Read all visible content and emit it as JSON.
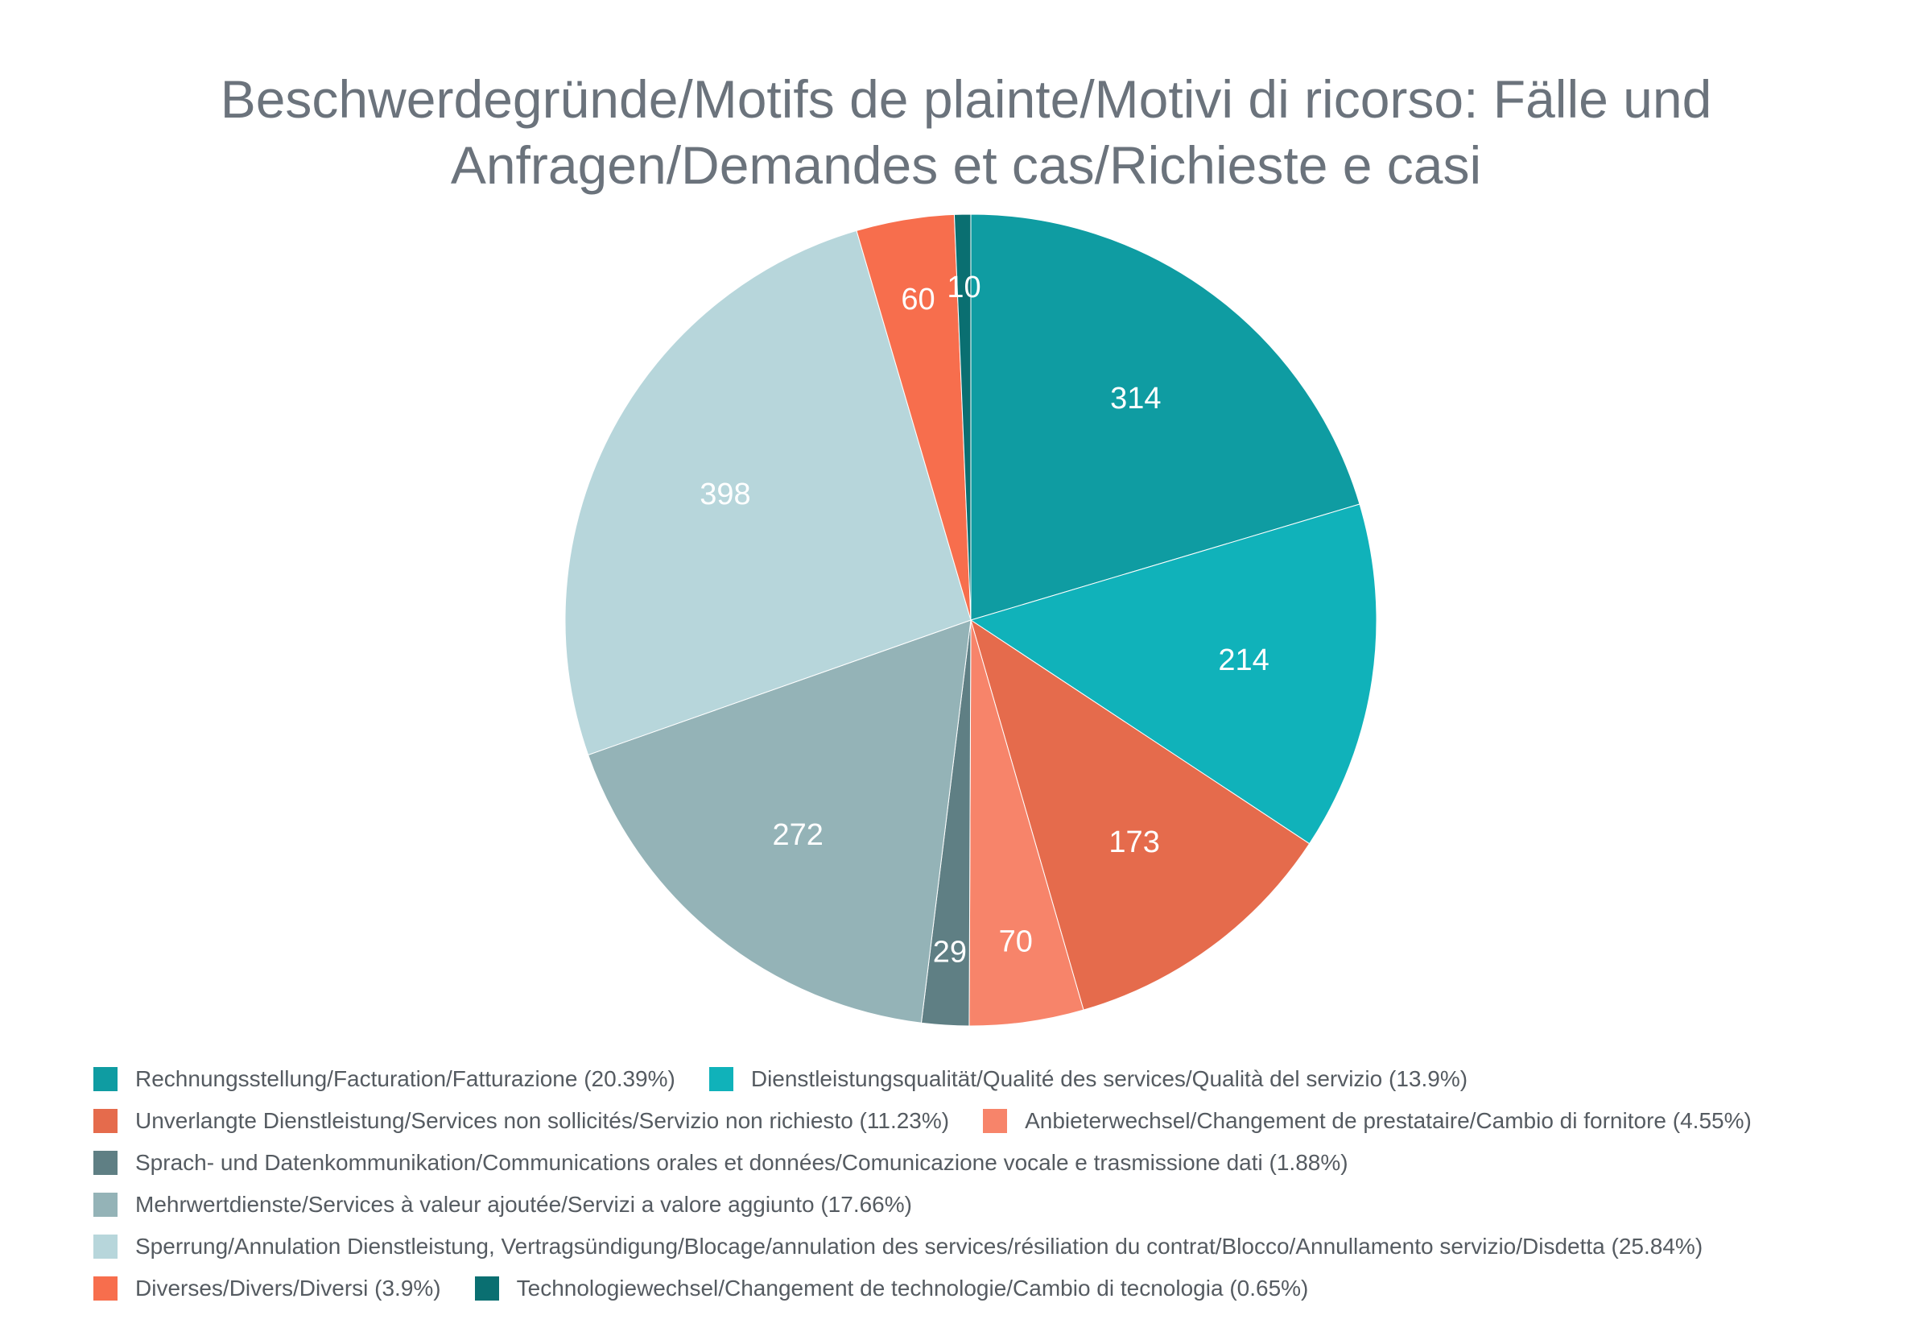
{
  "chart_data": {
    "type": "pie",
    "title_lines": [
      "Beschwerdegründe/Motifs de plainte/Motivi di ricorso: Fälle und",
      "Anfragen/Demandes et cas/Richieste e casi"
    ],
    "slices": [
      {
        "name": "Rechnungsstellung/Facturation/Fatturazione",
        "value": 314,
        "value_label": "314",
        "percent_label": "(20.39%)",
        "color": "#0f9ca2"
      },
      {
        "name": "Dienstleistungsqualität/Qualité des services/Qualità del servizio",
        "value": 214,
        "value_label": "214",
        "percent_label": "(13.9%)",
        "color": "#10b2ba"
      },
      {
        "name": "Unverlangte Dienstleistung/Services non sollicités/Servizio non richiesto",
        "value": 173,
        "value_label": "173",
        "percent_label": "(11.23%)",
        "color": "#e56b4c"
      },
      {
        "name": "Anbieterwechsel/Changement de prestataire/Cambio di fornitore",
        "value": 70,
        "value_label": "70",
        "percent_label": "(4.55%)",
        "color": "#f7846a"
      },
      {
        "name": "Sprach- und Datenkommunikation/Communications orales et données/Comunicazione vocale e trasmissione dati",
        "value": 29,
        "value_label": "29",
        "percent_label": "(1.88%)",
        "color": "#5f7f84"
      },
      {
        "name": "Mehrwertdienste/Services à valeur ajoutée/Servizi a valore aggiunto",
        "value": 272,
        "value_label": "272",
        "percent_label": "(17.66%)",
        "color": "#94b3b7"
      },
      {
        "name": "Sperrung/Annulation Dienstleistung, Vertragsündigung/Blocage/annulation des services/résiliation du contrat/Blocco/Annullamento servizio/Disdetta",
        "value": 398,
        "value_label": "398",
        "percent_label": "(25.84%)",
        "color": "#b7d6db"
      },
      {
        "name": "Diverses/Divers/Diversi",
        "value": 60,
        "value_label": "60",
        "percent_label": "(3.9%)",
        "color": "#f76e4d"
      },
      {
        "name": "Technologiewechsel/Changement de technologie/Cambio di tecnologia",
        "value": 10,
        "value_label": "10",
        "percent_label": "(0.65%)",
        "color": "#0a6f71"
      }
    ],
    "legend_rows": [
      [
        0,
        1
      ],
      [
        2,
        3
      ],
      [
        4
      ],
      [
        5
      ],
      [
        6
      ],
      [
        7,
        8
      ]
    ],
    "start_angle": "12 o'clock",
    "direction": "clockwise",
    "legend_position": "bottom"
  }
}
